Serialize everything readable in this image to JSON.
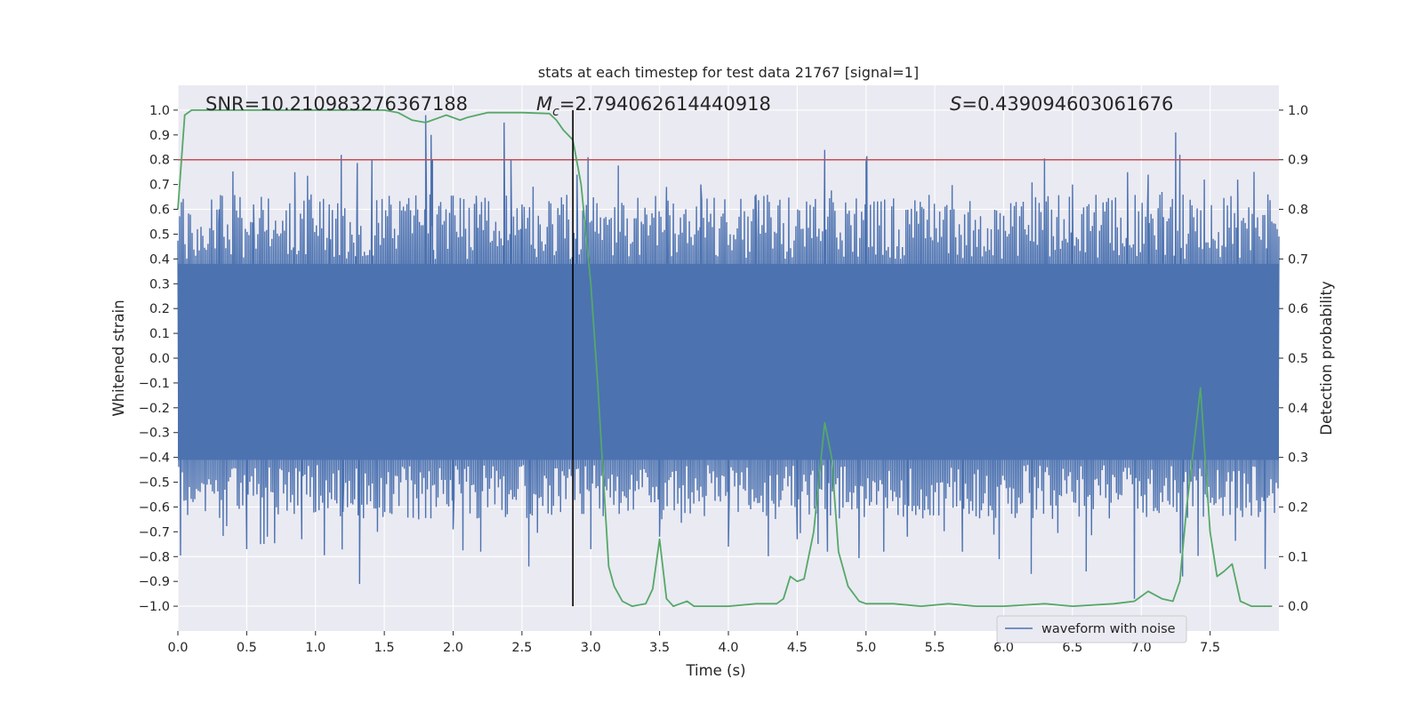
{
  "chart_data": {
    "type": "line",
    "title": "stats at each timestep for test data 21767 [signal=1]",
    "xlabel": "Time (s)",
    "ylabel_left": "Whitened strain",
    "ylabel_right": "Detection probability",
    "xlim": [
      0.0,
      8.0
    ],
    "ylim_left": [
      -1.1,
      1.1
    ],
    "ylim_right": [
      -0.05,
      1.05
    ],
    "x_ticks": [
      "0.0",
      "0.5",
      "1.0",
      "1.5",
      "2.0",
      "2.5",
      "3.0",
      "3.5",
      "4.0",
      "4.5",
      "5.0",
      "5.5",
      "6.0",
      "6.5",
      "7.0",
      "7.5"
    ],
    "y_ticks_left": [
      "1.0",
      "0.9",
      "0.8",
      "0.7",
      "0.6",
      "0.5",
      "0.4",
      "0.3",
      "0.2",
      "0.1",
      "0.0",
      "−0.1",
      "−0.2",
      "−0.3",
      "−0.4",
      "−0.5",
      "−0.6",
      "−0.7",
      "−0.8",
      "−0.9",
      "−1.0"
    ],
    "y_ticks_right": [
      "1.0",
      "0.9",
      "0.8",
      "0.7",
      "0.6",
      "0.5",
      "0.4",
      "0.3",
      "0.2",
      "0.1",
      "0.0"
    ],
    "grid": true,
    "annotations": {
      "snr": "SNR=10.210983276367188",
      "mc_symbol": "M",
      "mc_sub": "c",
      "mc_value": "=2.794062614440918",
      "s_symbol": "S",
      "s_value": "=0.439094603061676"
    },
    "threshold": {
      "axis": "right",
      "value": 0.9,
      "color": "#c44e52"
    },
    "marker_time": 2.87,
    "series": [
      {
        "name": "waveform with noise",
        "axis": "left",
        "kind": "noise",
        "color": "#4c72b0",
        "band": [
          -0.41,
          0.38
        ],
        "spikes": [
          [
            0.3,
            0.6
          ],
          [
            0.5,
            -0.77
          ],
          [
            0.55,
            0.62
          ],
          [
            0.6,
            -0.75
          ],
          [
            0.65,
            -0.72
          ],
          [
            0.85,
            0.75
          ],
          [
            0.9,
            -0.73
          ],
          [
            1.1,
            0.62
          ],
          [
            1.2,
            -0.62
          ],
          [
            1.3,
            0.56
          ],
          [
            1.32,
            -0.91
          ],
          [
            1.41,
            0.8
          ],
          [
            1.45,
            -0.7
          ],
          [
            1.75,
            -0.65
          ],
          [
            1.8,
            0.98
          ],
          [
            1.84,
            0.9
          ],
          [
            1.85,
            0.8
          ],
          [
            2.0,
            -0.69
          ],
          [
            2.17,
            0.62
          ],
          [
            2.2,
            -0.78
          ],
          [
            2.37,
            0.95
          ],
          [
            2.42,
            0.8
          ],
          [
            2.5,
            0.62
          ],
          [
            2.55,
            -0.84
          ],
          [
            2.8,
            0.62
          ],
          [
            2.9,
            0.74
          ],
          [
            2.98,
            0.81
          ],
          [
            3.0,
            -0.77
          ],
          [
            3.2,
            0.6
          ],
          [
            3.5,
            -0.72
          ],
          [
            3.55,
            0.69
          ],
          [
            3.8,
            0.7
          ],
          [
            4.0,
            -0.76
          ],
          [
            4.2,
            0.66
          ],
          [
            4.5,
            -0.73
          ],
          [
            4.7,
            0.84
          ],
          [
            4.72,
            -0.78
          ],
          [
            4.95,
            -0.72
          ],
          [
            5.0,
            0.79
          ],
          [
            5.3,
            -0.72
          ],
          [
            5.7,
            -0.78
          ],
          [
            6.2,
            -0.87
          ],
          [
            6.5,
            0.7
          ],
          [
            6.6,
            -0.86
          ],
          [
            6.9,
            0.75
          ],
          [
            6.95,
            -0.97
          ],
          [
            7.05,
            0.74
          ],
          [
            7.15,
            0.67
          ],
          [
            7.25,
            0.91
          ],
          [
            7.28,
            0.82
          ],
          [
            7.3,
            -0.88
          ],
          [
            7.7,
            0.72
          ],
          [
            7.9,
            -0.85
          ],
          [
            7.92,
            0.66
          ]
        ]
      },
      {
        "name": "detection probability",
        "axis": "right",
        "kind": "line",
        "color": "#55a868",
        "points": [
          [
            0.0,
            0.8
          ],
          [
            0.05,
            0.99
          ],
          [
            0.1,
            1.0
          ],
          [
            0.5,
            1.0
          ],
          [
            1.0,
            1.0
          ],
          [
            1.5,
            1.0
          ],
          [
            1.6,
            0.995
          ],
          [
            1.7,
            0.98
          ],
          [
            1.8,
            0.975
          ],
          [
            1.9,
            0.985
          ],
          [
            1.95,
            0.99
          ],
          [
            2.0,
            0.985
          ],
          [
            2.05,
            0.98
          ],
          [
            2.1,
            0.985
          ],
          [
            2.25,
            0.995
          ],
          [
            2.5,
            0.995
          ],
          [
            2.7,
            0.993
          ],
          [
            2.75,
            0.98
          ],
          [
            2.8,
            0.96
          ],
          [
            2.87,
            0.94
          ],
          [
            2.93,
            0.85
          ],
          [
            3.0,
            0.65
          ],
          [
            3.05,
            0.45
          ],
          [
            3.1,
            0.22
          ],
          [
            3.13,
            0.08
          ],
          [
            3.17,
            0.04
          ],
          [
            3.23,
            0.01
          ],
          [
            3.3,
            0.0
          ],
          [
            3.4,
            0.005
          ],
          [
            3.45,
            0.035
          ],
          [
            3.5,
            0.135
          ],
          [
            3.55,
            0.015
          ],
          [
            3.6,
            0.0
          ],
          [
            3.65,
            0.005
          ],
          [
            3.7,
            0.01
          ],
          [
            3.75,
            0.0
          ],
          [
            3.85,
            0.0
          ],
          [
            4.0,
            0.0
          ],
          [
            4.2,
            0.005
          ],
          [
            4.35,
            0.005
          ],
          [
            4.4,
            0.015
          ],
          [
            4.45,
            0.06
          ],
          [
            4.5,
            0.05
          ],
          [
            4.55,
            0.055
          ],
          [
            4.62,
            0.15
          ],
          [
            4.7,
            0.37
          ],
          [
            4.75,
            0.3
          ],
          [
            4.8,
            0.11
          ],
          [
            4.87,
            0.04
          ],
          [
            4.95,
            0.01
          ],
          [
            5.0,
            0.005
          ],
          [
            5.2,
            0.005
          ],
          [
            5.4,
            0.0
          ],
          [
            5.6,
            0.005
          ],
          [
            5.8,
            0.0
          ],
          [
            6.0,
            0.0
          ],
          [
            6.3,
            0.005
          ],
          [
            6.5,
            0.0
          ],
          [
            6.8,
            0.005
          ],
          [
            6.95,
            0.01
          ],
          [
            7.0,
            0.02
          ],
          [
            7.05,
            0.03
          ],
          [
            7.15,
            0.015
          ],
          [
            7.23,
            0.01
          ],
          [
            7.28,
            0.05
          ],
          [
            7.33,
            0.2
          ],
          [
            7.43,
            0.44
          ],
          [
            7.5,
            0.15
          ],
          [
            7.55,
            0.06
          ],
          [
            7.6,
            0.07
          ],
          [
            7.66,
            0.085
          ],
          [
            7.72,
            0.01
          ],
          [
            7.8,
            0.0
          ],
          [
            7.95,
            0.0
          ]
        ]
      }
    ],
    "legend": {
      "position": "lower-right",
      "entries": [
        "waveform with noise"
      ]
    }
  }
}
